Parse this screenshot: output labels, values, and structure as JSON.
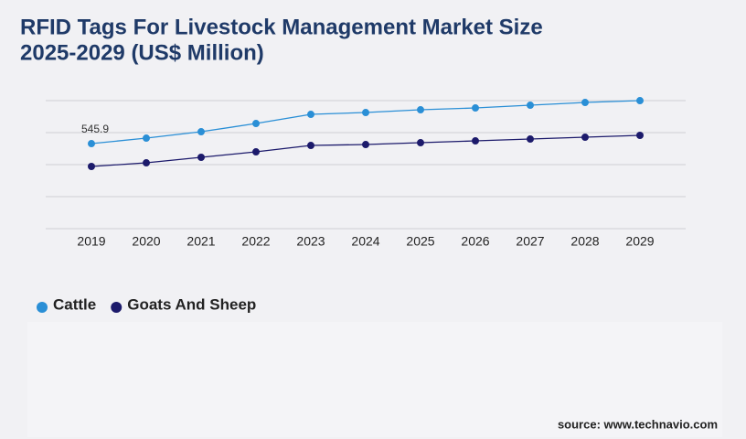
{
  "chart_data": {
    "type": "line",
    "title": "RFID Tags For Livestock Management Market Size",
    "subtitle": "2025-2029 (US$ Million)",
    "categories": [
      "2019",
      "2020",
      "2021",
      "2022",
      "2023",
      "2024",
      "2025",
      "2026",
      "2027",
      "2028",
      "2029"
    ],
    "series": [
      {
        "name": "Cattle",
        "color": "#2a8fd6",
        "values": [
          545.9,
          581.1,
          622.2,
          675.0,
          733.8,
          745.5,
          763.1,
          774.9,
          792.5,
          810.1,
          821.8
        ],
        "value_labels": [
          "545.9",
          null,
          null,
          null,
          null,
          null,
          null,
          null,
          null,
          null,
          null
        ]
      },
      {
        "name": "Goats And Sheep",
        "color": "#1c1a6b",
        "values": [
          399.2,
          422.6,
          457.9,
          493.1,
          534.2,
          540.0,
          551.8,
          563.5,
          575.3,
          587.0,
          598.8
        ]
      }
    ],
    "ylim": [
      0,
      822
    ],
    "yticks": [
      0,
      205.5,
      411,
      616.5,
      822
    ],
    "grid": true,
    "source": "source: www.technavio.com"
  }
}
